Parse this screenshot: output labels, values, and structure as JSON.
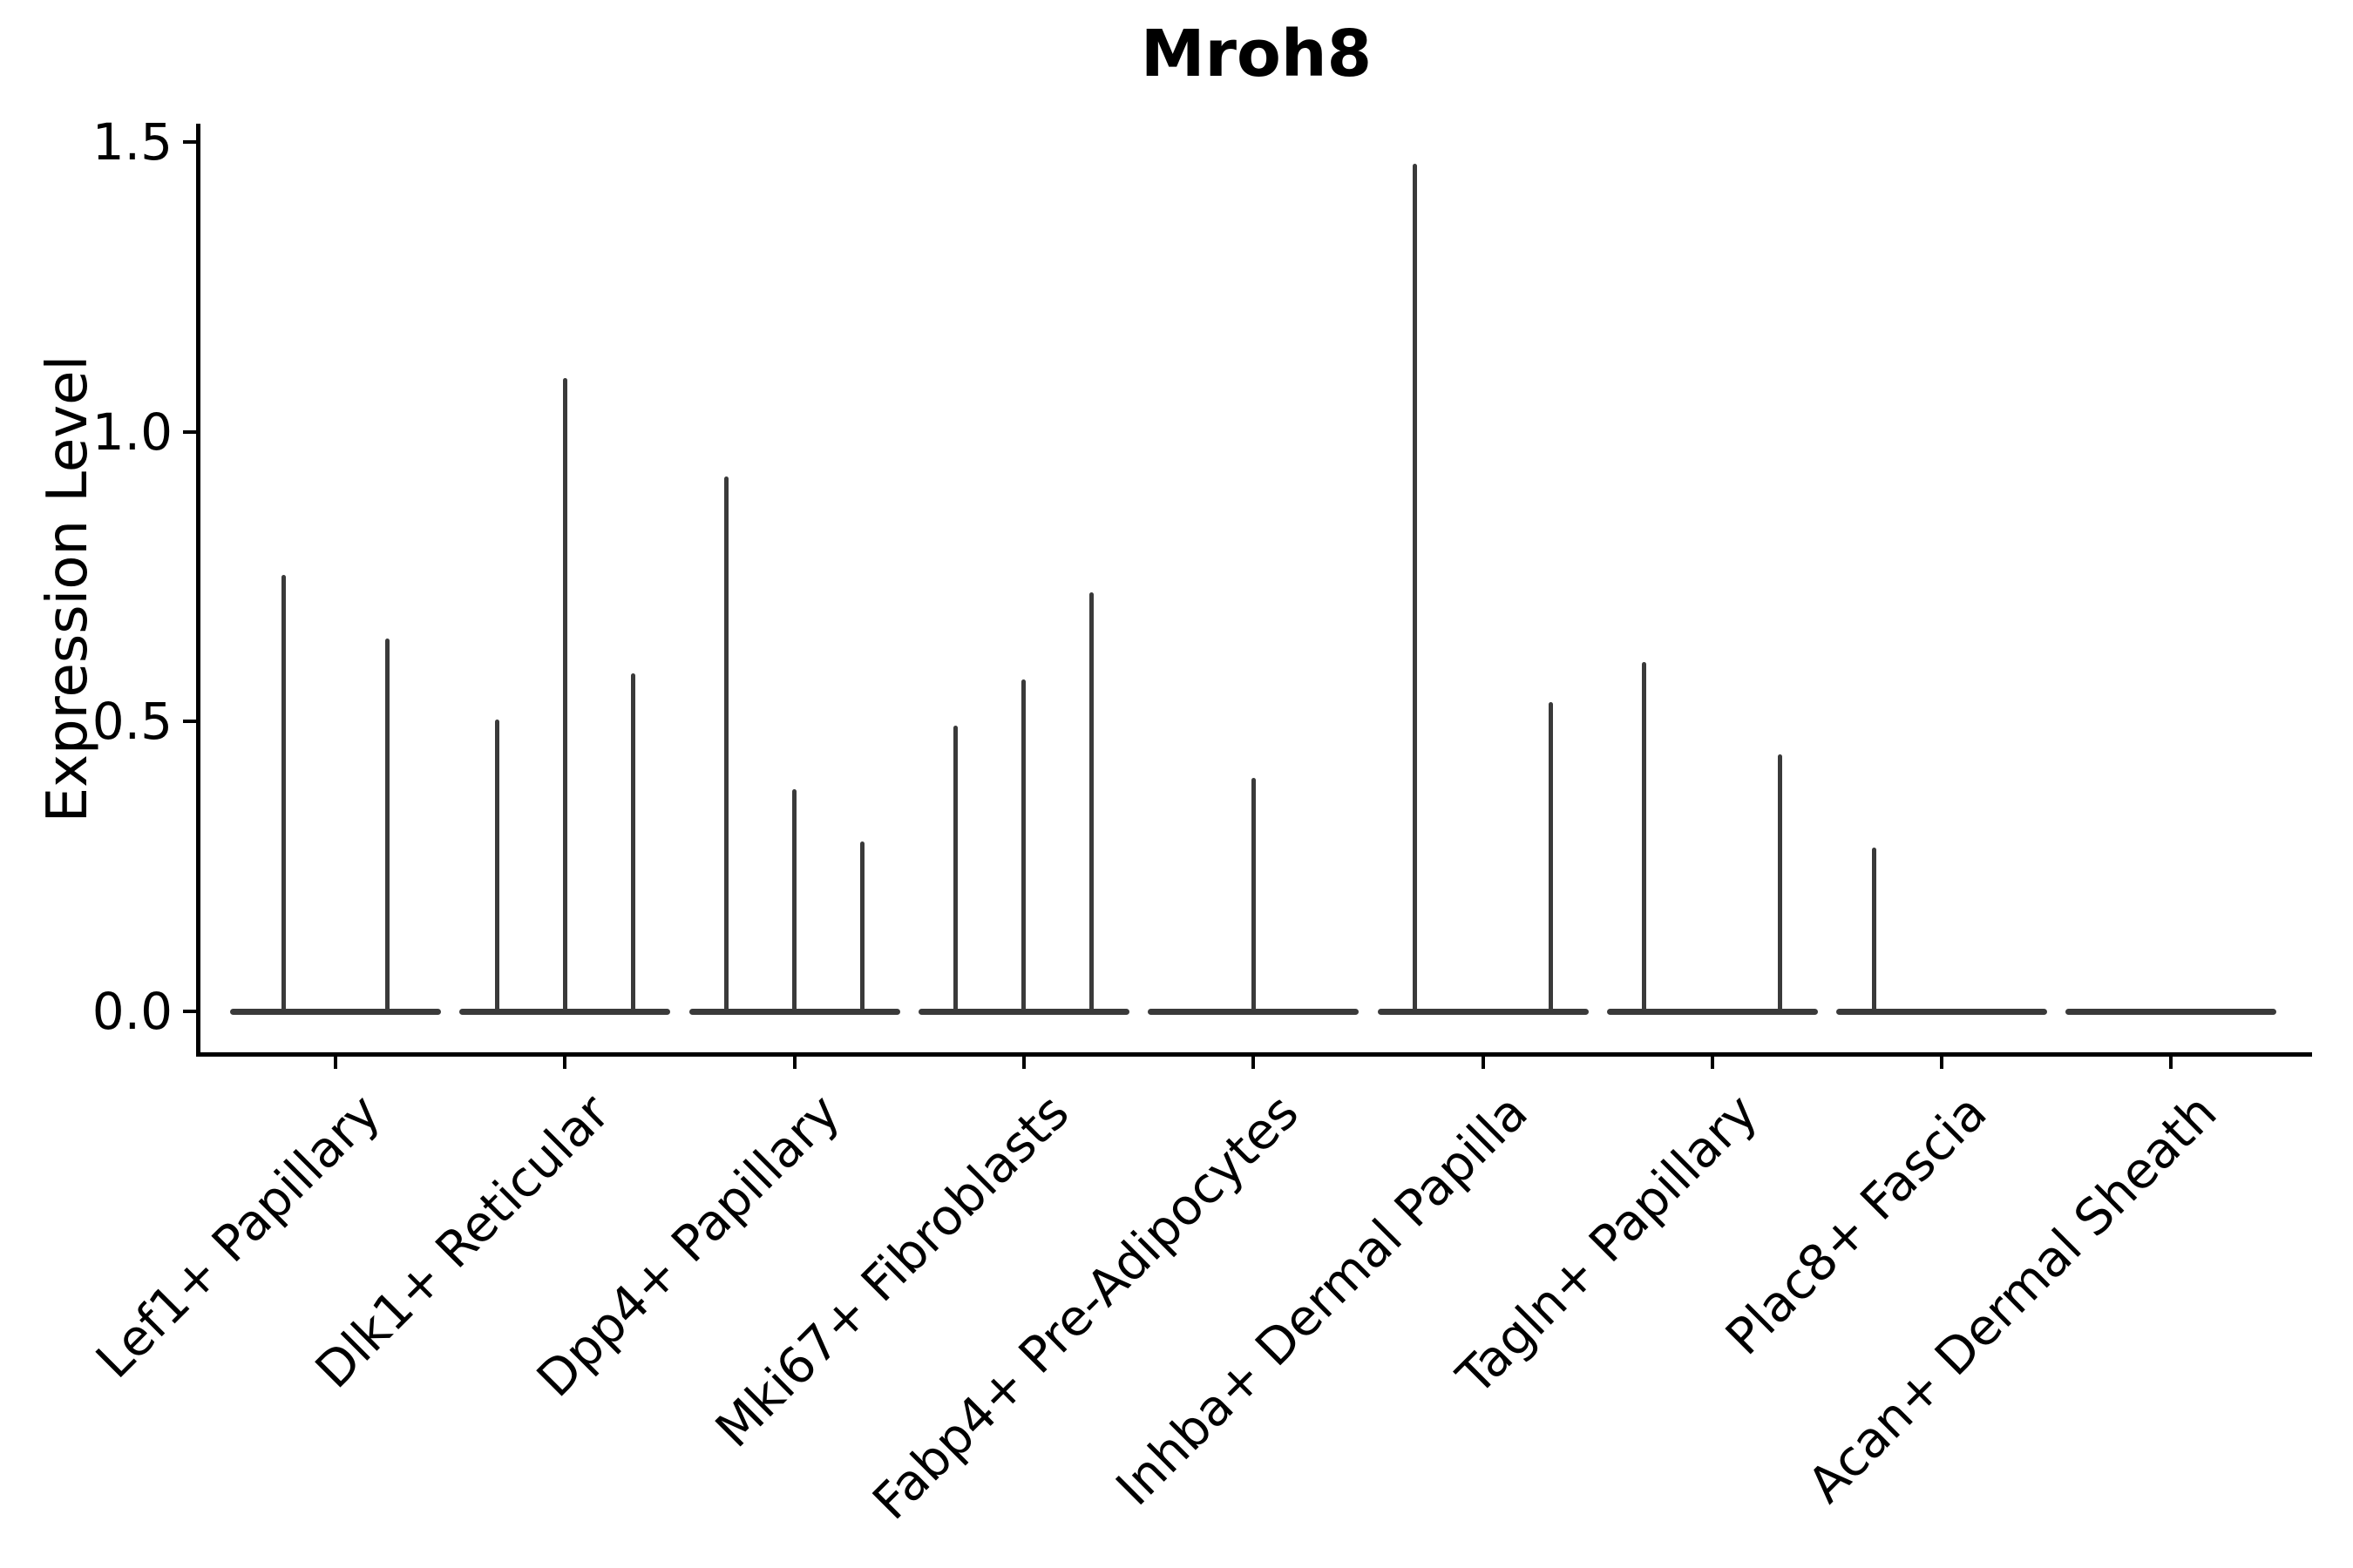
{
  "figure": {
    "title": "Mroh8",
    "ylabel": "Expression Level"
  },
  "chart_data": {
    "type": "violin",
    "title": "Mroh8",
    "xlabel": "",
    "ylabel": "Expression Level",
    "ylim": [
      0,
      1.5
    ],
    "ytick_labels": [
      "0.0",
      "0.5",
      "1.0",
      "1.5"
    ],
    "ytick_values": [
      0.0,
      0.5,
      1.0,
      1.5
    ],
    "grid": false,
    "legend": "none",
    "violin_color": "#3a3a3a",
    "axis_color": "#000000",
    "background_color": "#ffffff",
    "note": "Each category shows collapsed violins (flat baseline at 0) with thin spikes; spike pos is offset fraction of category half-width, max is peak expression level",
    "categories": [
      "Lef1+ Papillary",
      "Dlk1+ Reticular",
      "Dpp4+ Papillary",
      "Mki67+ Fibroblasts",
      "Fabp4+ Pre-Adipocytes",
      "Inhba+ Dermal Papilla",
      "Tagln+ Papillary",
      "Plac8+ Fascia",
      "Acan+ Dermal Sheath"
    ],
    "series": [
      {
        "category": "Lef1+ Papillary",
        "violins": [
          {
            "pos": -0.49,
            "max": 0.75
          },
          {
            "pos": 0.49,
            "max": 0.64
          }
        ]
      },
      {
        "category": "Dlk1+ Reticular",
        "violins": [
          {
            "pos": -0.645,
            "max": 0.5
          },
          {
            "pos": 0.0,
            "max": 1.09
          },
          {
            "pos": 0.645,
            "max": 0.58
          }
        ]
      },
      {
        "category": "Dpp4+ Papillary",
        "violins": [
          {
            "pos": -0.645,
            "max": 0.92
          },
          {
            "pos": 0.0,
            "max": 0.38
          },
          {
            "pos": 0.645,
            "max": 0.29
          }
        ]
      },
      {
        "category": "Mki67+ Fibroblasts",
        "violins": [
          {
            "pos": -0.645,
            "max": 0.49
          },
          {
            "pos": 0.0,
            "max": 0.57
          },
          {
            "pos": 0.645,
            "max": 0.72
          }
        ]
      },
      {
        "category": "Fabp4+ Pre-Adipocytes",
        "violins": [
          {
            "pos": 0.0,
            "max": 0.4
          }
        ]
      },
      {
        "category": "Inhba+ Dermal Papilla",
        "violins": [
          {
            "pos": -0.645,
            "max": 1.46
          },
          {
            "pos": 0.645,
            "max": 0.53
          }
        ]
      },
      {
        "category": "Tagln+ Papillary",
        "violins": [
          {
            "pos": -0.645,
            "max": 0.6
          },
          {
            "pos": 0.645,
            "max": 0.44
          }
        ]
      },
      {
        "category": "Plac8+ Fascia",
        "violins": [
          {
            "pos": -0.645,
            "max": 0.28
          }
        ]
      },
      {
        "category": "Acan+ Dermal Sheath",
        "violins": []
      }
    ]
  }
}
